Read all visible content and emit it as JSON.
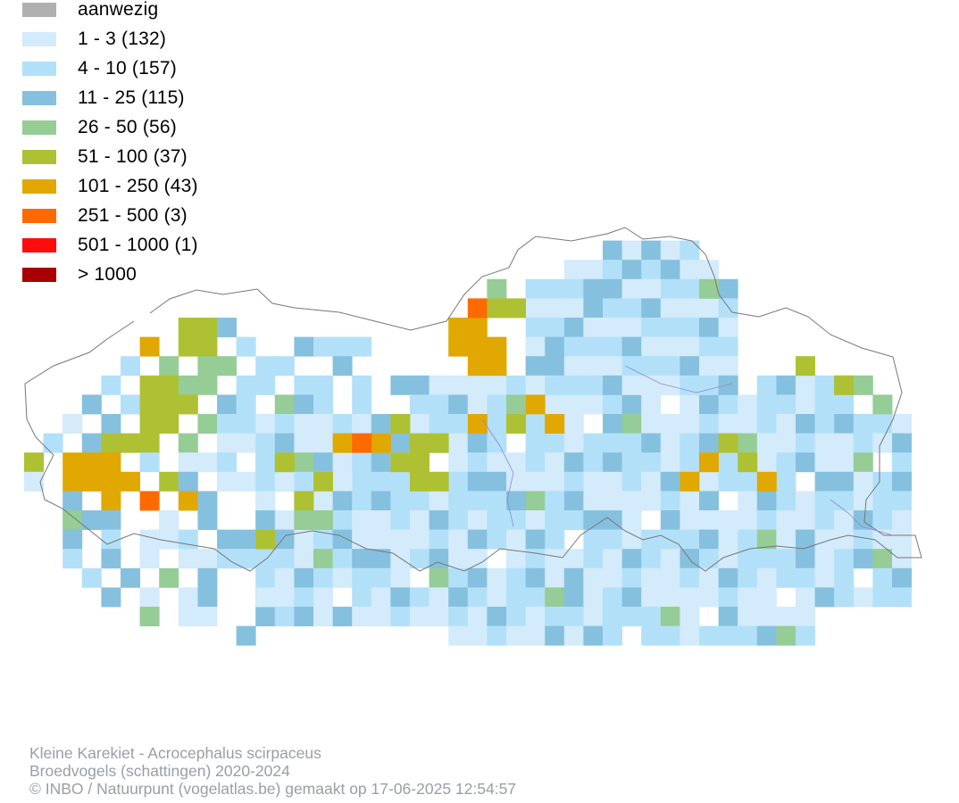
{
  "legend": [
    {
      "label": "aanwezig",
      "color": "#b0b0b0"
    },
    {
      "label": "1 - 3 (132)",
      "color": "#d3ebfa"
    },
    {
      "label": "4 - 10 (157)",
      "color": "#b3e0f9"
    },
    {
      "label": "11 - 25 (115)",
      "color": "#86c0df"
    },
    {
      "label": "26 - 50 (56)",
      "color": "#96cc95"
    },
    {
      "label": "51 - 100 (37)",
      "color": "#aec132"
    },
    {
      "label": "101 - 250 (43)",
      "color": "#e0a800"
    },
    {
      "label": "251 - 500 (3)",
      "color": "#ff6a00"
    },
    {
      "label": "501 - 1000 (1)",
      "color": "#ff0d0d"
    },
    {
      "label": "> 1000",
      "color": "#a80000"
    }
  ],
  "credits": {
    "line1": "Kleine Karekiet - Acrocephalus scirpaceus",
    "line2": "Broedvogels (schattingen) 2020-2024",
    "line3": "© INBO / Natuurpunt (vogelatlas.be) gemaakt op 17-06-2025 12:54:57"
  },
  "colors": {
    "border_line": "#777777",
    "river_line": "#8f86d6",
    "credit_text": "#9a9ea3"
  }
}
